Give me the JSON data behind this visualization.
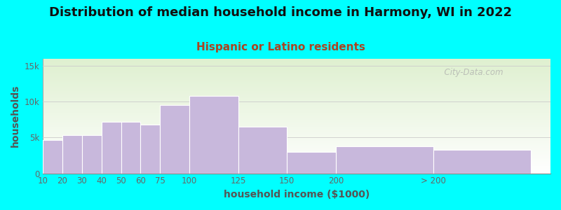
{
  "title": "Distribution of median household income in Harmony, WI in 2022",
  "subtitle": "Hispanic or Latino residents",
  "xlabel": "household income ($1000)",
  "ylabel": "households",
  "background_color": "#00FFFF",
  "plot_bg_gradient_top": "#dff0d0",
  "plot_bg_gradient_bottom": "#ffffff",
  "bar_color": "#c8b8dc",
  "bar_edge_color": "#ffffff",
  "title_color": "#111111",
  "subtitle_color": "#aa4422",
  "axis_label_color": "#555555",
  "tick_color": "#666666",
  "watermark_text": "  City-Data.com",
  "title_fontsize": 13,
  "subtitle_fontsize": 11,
  "axis_label_fontsize": 10,
  "tick_fontsize": 8.5,
  "ytick_labels": [
    "0",
    "5k",
    "10k",
    "15k"
  ],
  "yticks": [
    0,
    5000,
    10000,
    15000
  ],
  "ylim": [
    0,
    16000
  ],
  "bin_edges": [
    0,
    10,
    20,
    30,
    40,
    50,
    60,
    75,
    100,
    125,
    150,
    200,
    250
  ],
  "bin_labels": [
    "10",
    "20",
    "30",
    "40",
    "50",
    "60",
    "75",
    "100",
    "125",
    "150",
    "200",
    "> 200"
  ],
  "values": [
    4700,
    5300,
    5300,
    7200,
    7200,
    6800,
    9500,
    10800,
    6500,
    3000,
    3800,
    3300
  ]
}
